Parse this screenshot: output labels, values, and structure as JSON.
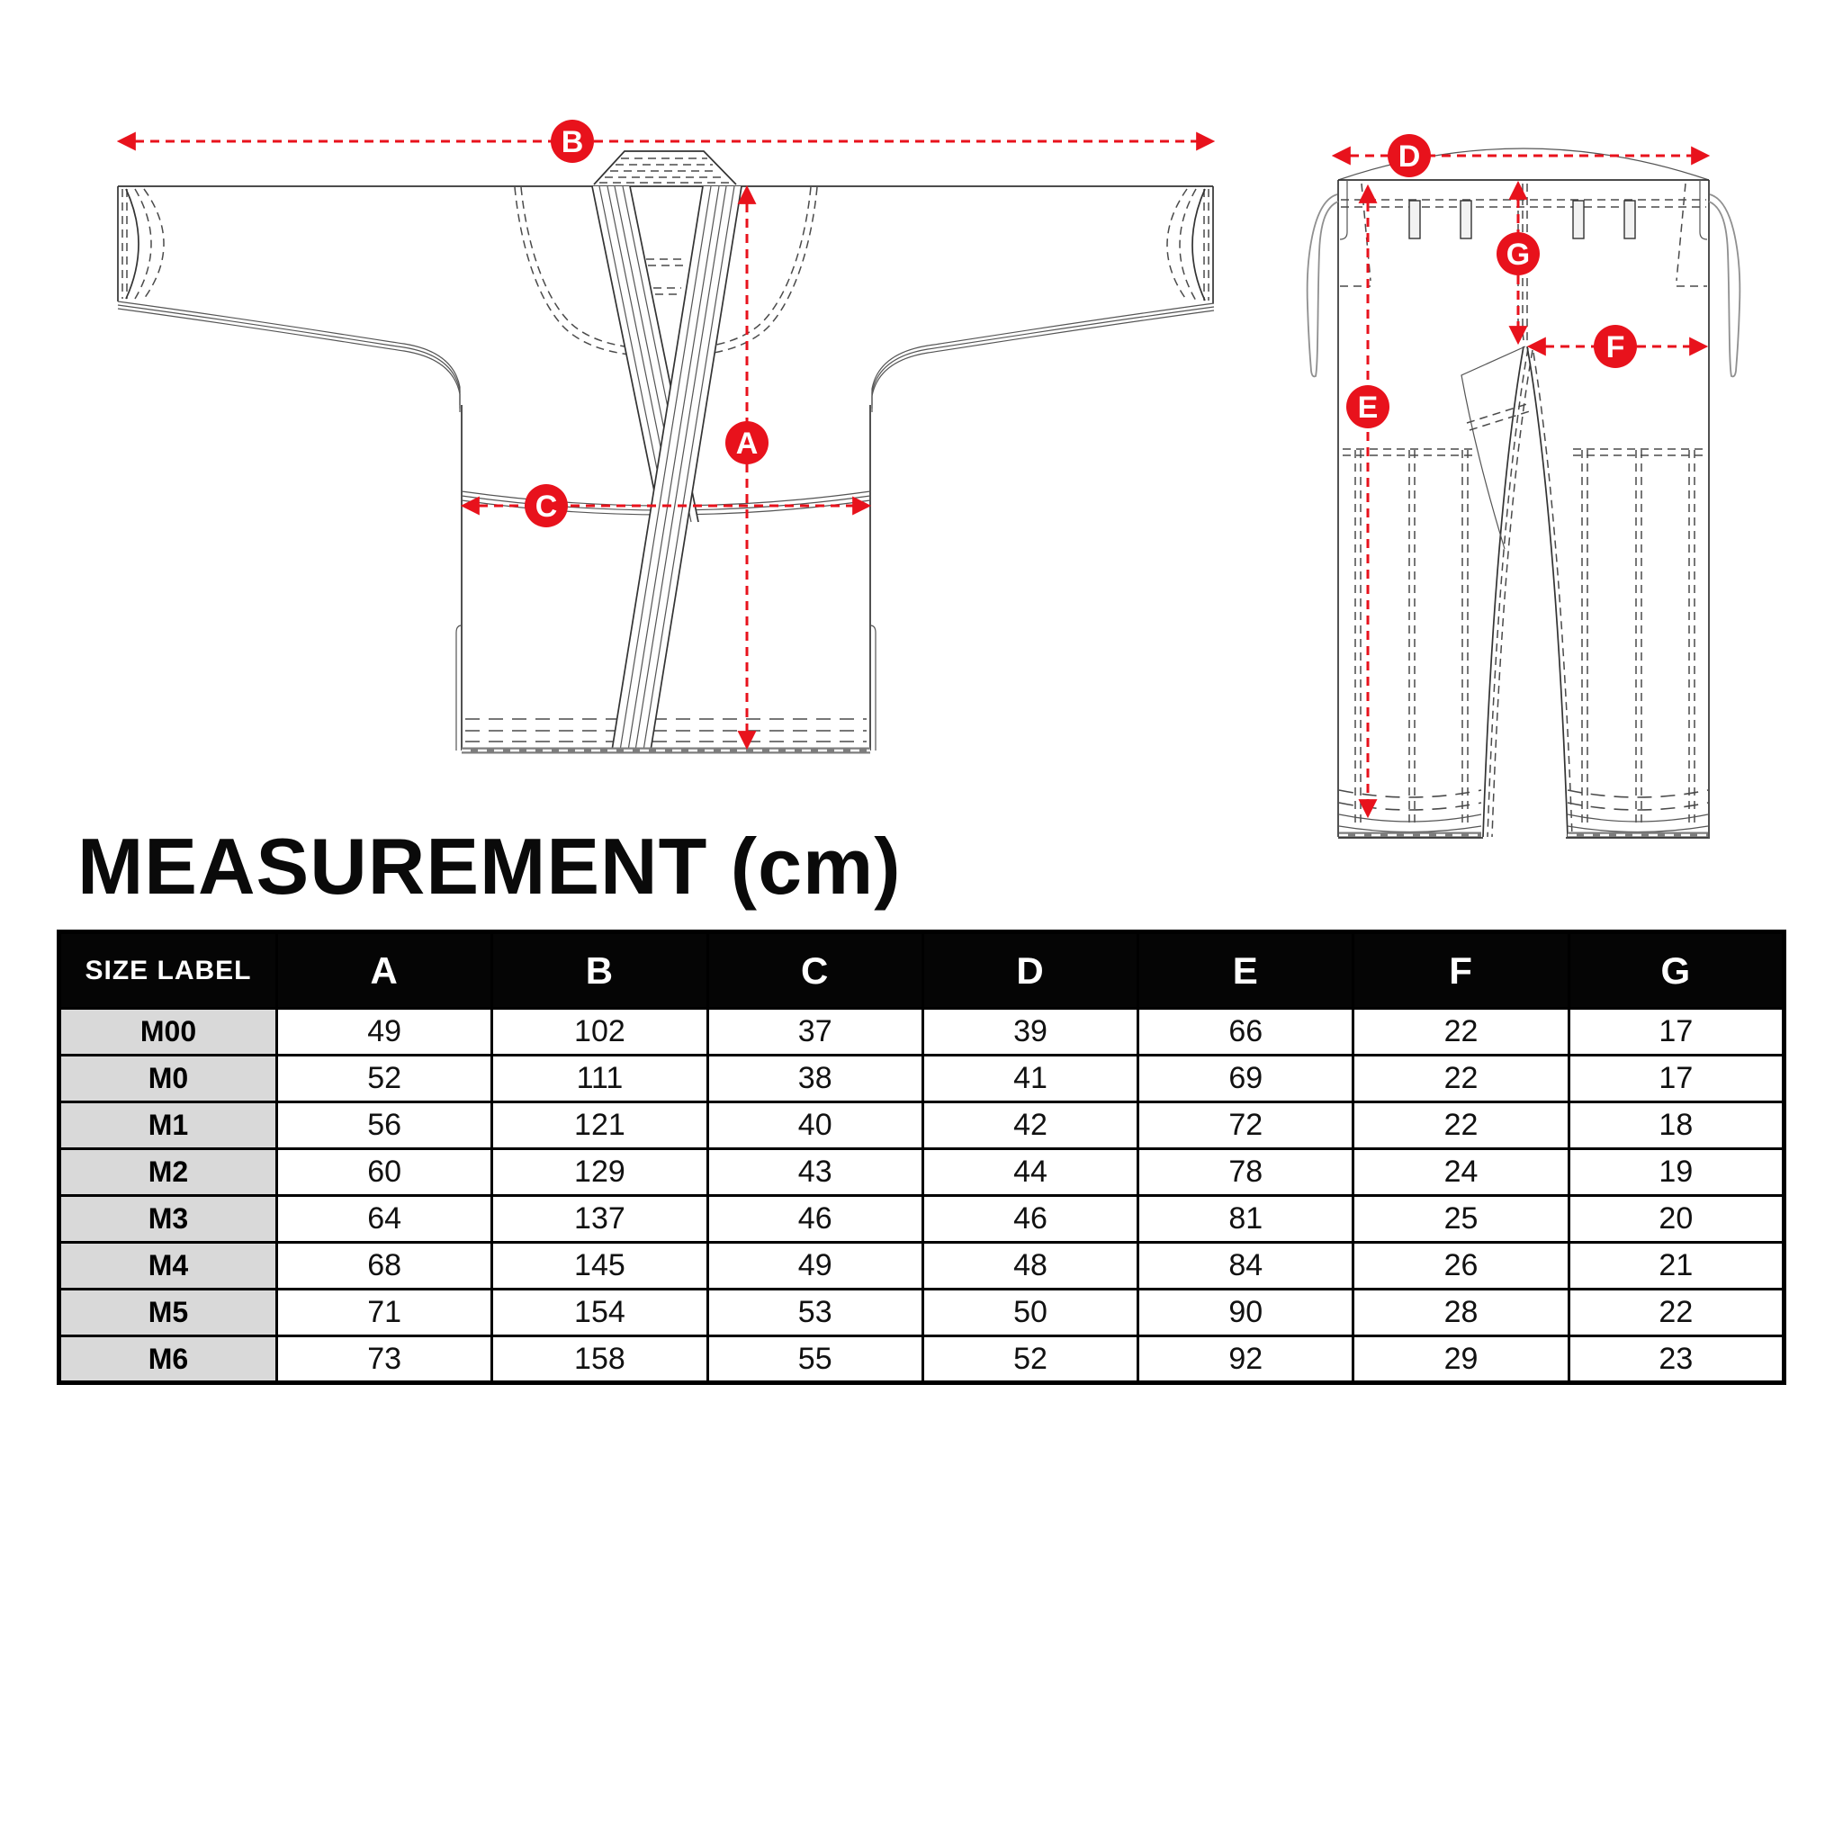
{
  "title": "MEASUREMENT (cm)",
  "diagram": {
    "accent_color": "#e8121c",
    "line_color": "#333333",
    "jacket": {
      "name": "gi jacket front view",
      "markers": [
        {
          "label": "A"
        },
        {
          "label": "B"
        },
        {
          "label": "C"
        }
      ]
    },
    "pants": {
      "name": "gi pants front view",
      "markers": [
        {
          "label": "D"
        },
        {
          "label": "E"
        },
        {
          "label": "F"
        },
        {
          "label": "G"
        }
      ]
    }
  },
  "table": {
    "header": [
      "SIZE LABEL",
      "A",
      "B",
      "C",
      "D",
      "E",
      "F",
      "G"
    ],
    "rows": [
      {
        "size": "M00",
        "values": [
          49,
          102,
          37,
          39,
          66,
          22,
          17
        ]
      },
      {
        "size": "M0",
        "values": [
          52,
          111,
          38,
          41,
          69,
          22,
          17
        ]
      },
      {
        "size": "M1",
        "values": [
          56,
          121,
          40,
          42,
          72,
          22,
          18
        ]
      },
      {
        "size": "M2",
        "values": [
          60,
          129,
          43,
          44,
          78,
          24,
          19
        ]
      },
      {
        "size": "M3",
        "values": [
          64,
          137,
          46,
          46,
          81,
          25,
          20
        ]
      },
      {
        "size": "M4",
        "values": [
          68,
          145,
          49,
          48,
          84,
          26,
          21
        ]
      },
      {
        "size": "M5",
        "values": [
          71,
          154,
          53,
          50,
          90,
          28,
          22
        ]
      },
      {
        "size": "M6",
        "values": [
          73,
          158,
          55,
          52,
          92,
          29,
          23
        ]
      }
    ]
  }
}
